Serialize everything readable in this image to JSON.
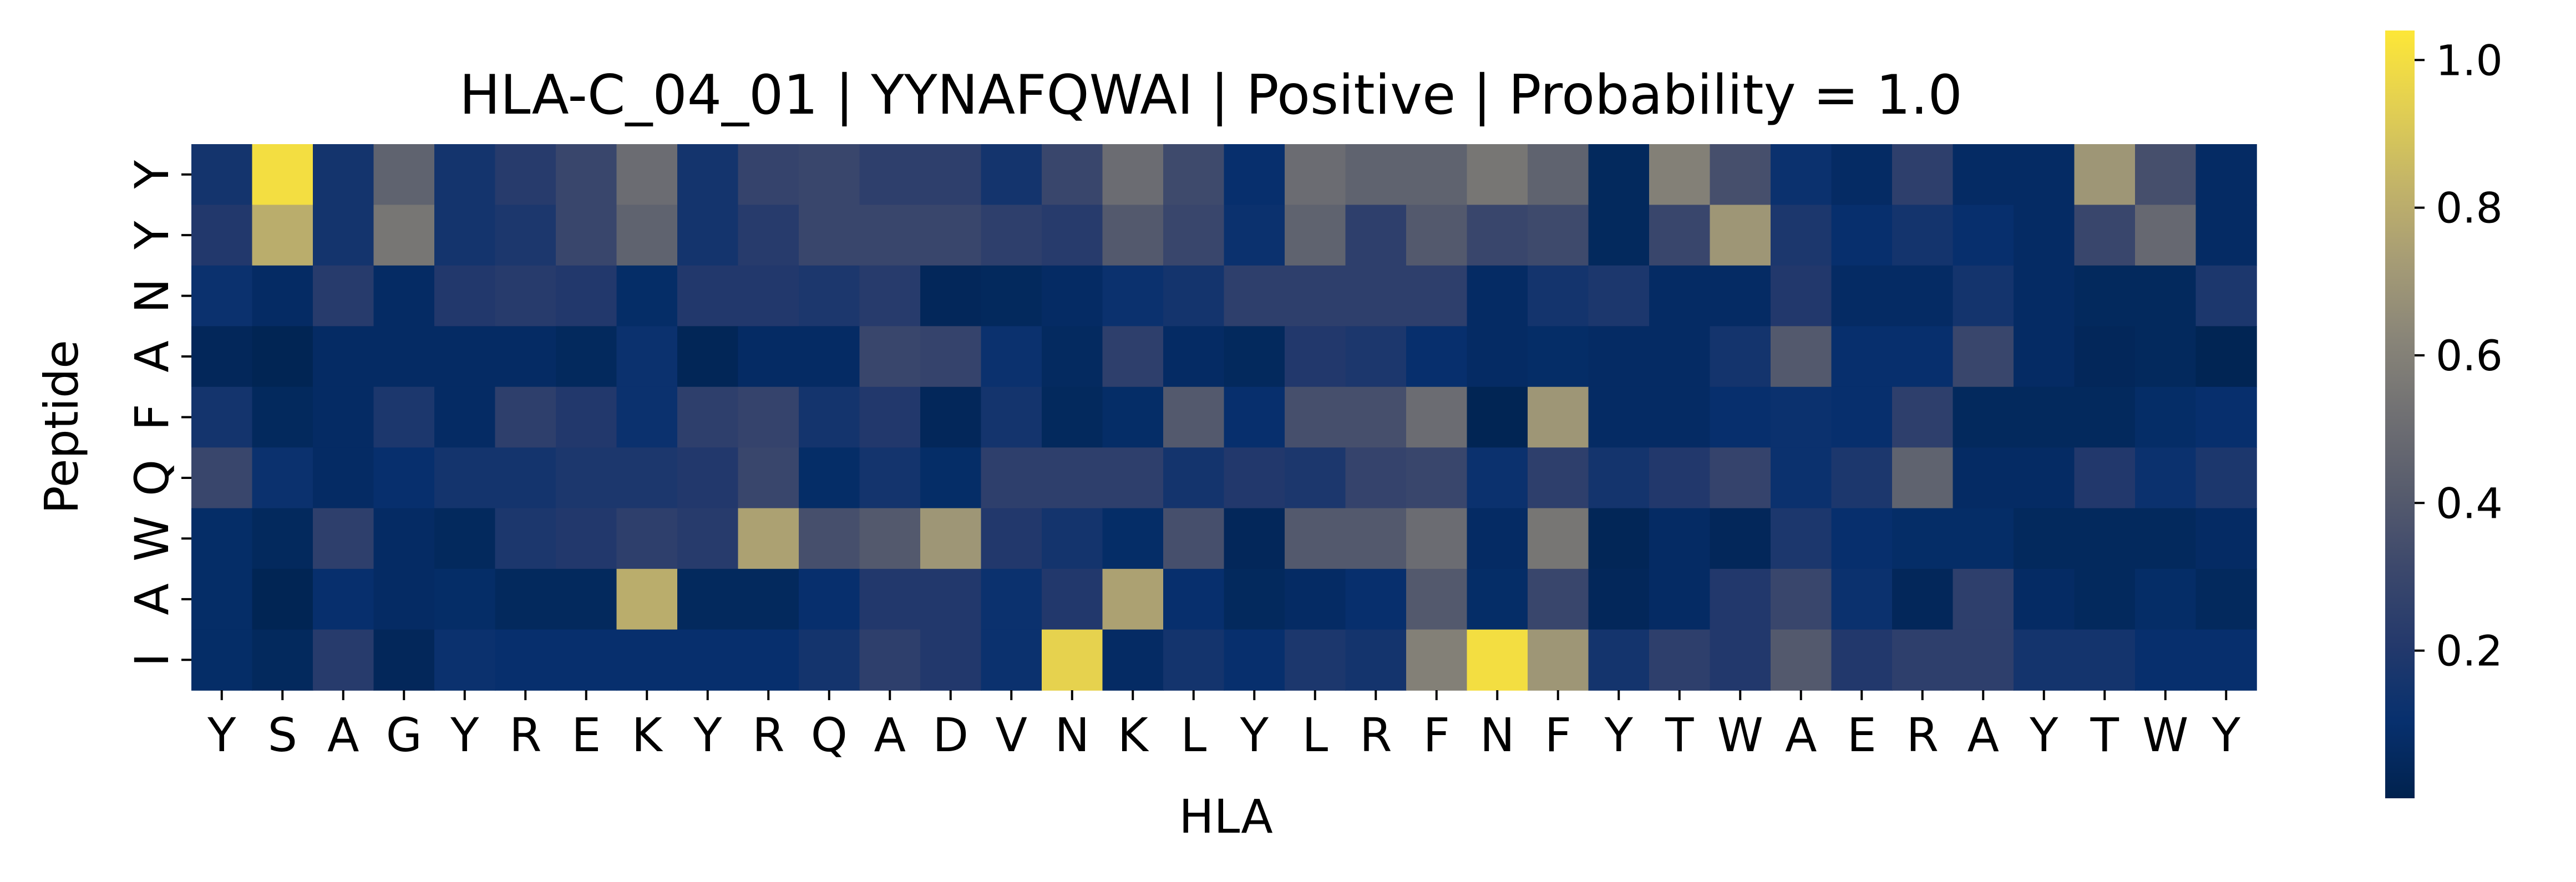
{
  "chart_data": {
    "type": "heatmap",
    "title": "HLA-C_04_01 | YYNAFQWAI | Positive | Probability = 1.0",
    "xlabel": "HLA",
    "ylabel": "Peptide",
    "x_categories": [
      "Y",
      "S",
      "A",
      "G",
      "Y",
      "R",
      "E",
      "K",
      "Y",
      "R",
      "Q",
      "A",
      "D",
      "V",
      "N",
      "K",
      "L",
      "Y",
      "L",
      "R",
      "F",
      "N",
      "F",
      "Y",
      "T",
      "W",
      "A",
      "E",
      "R",
      "A",
      "Y",
      "T",
      "W",
      "Y"
    ],
    "y_categories": [
      "Y",
      "Y",
      "N",
      "A",
      "F",
      "Q",
      "W",
      "A",
      "I"
    ],
    "values": [
      [
        0.15,
        1.0,
        0.15,
        0.45,
        0.15,
        0.22,
        0.3,
        0.5,
        0.15,
        0.28,
        0.3,
        0.25,
        0.25,
        0.15,
        0.3,
        0.5,
        0.32,
        0.1,
        0.5,
        0.45,
        0.45,
        0.55,
        0.45,
        0.05,
        0.6,
        0.35,
        0.12,
        0.07,
        0.25,
        0.07,
        0.07,
        0.7,
        0.35,
        0.07
      ],
      [
        0.2,
        0.8,
        0.15,
        0.55,
        0.15,
        0.18,
        0.3,
        0.45,
        0.15,
        0.22,
        0.3,
        0.3,
        0.3,
        0.25,
        0.22,
        0.4,
        0.3,
        0.12,
        0.45,
        0.25,
        0.4,
        0.3,
        0.32,
        0.05,
        0.3,
        0.7,
        0.18,
        0.1,
        0.15,
        0.1,
        0.07,
        0.3,
        0.48,
        0.07
      ],
      [
        0.12,
        0.07,
        0.22,
        0.07,
        0.2,
        0.22,
        0.2,
        0.08,
        0.2,
        0.2,
        0.18,
        0.22,
        0.04,
        0.05,
        0.07,
        0.12,
        0.15,
        0.25,
        0.25,
        0.25,
        0.25,
        0.07,
        0.15,
        0.18,
        0.07,
        0.07,
        0.2,
        0.07,
        0.07,
        0.15,
        0.07,
        0.05,
        0.05,
        0.18
      ],
      [
        0.04,
        0.02,
        0.07,
        0.07,
        0.07,
        0.07,
        0.05,
        0.12,
        0.03,
        0.07,
        0.07,
        0.3,
        0.28,
        0.12,
        0.06,
        0.25,
        0.07,
        0.05,
        0.2,
        0.18,
        0.1,
        0.07,
        0.08,
        0.07,
        0.07,
        0.15,
        0.4,
        0.1,
        0.1,
        0.3,
        0.07,
        0.04,
        0.05,
        0.02
      ],
      [
        0.15,
        0.05,
        0.07,
        0.18,
        0.07,
        0.25,
        0.2,
        0.12,
        0.25,
        0.28,
        0.15,
        0.2,
        0.04,
        0.15,
        0.05,
        0.08,
        0.4,
        0.1,
        0.35,
        0.35,
        0.5,
        0.02,
        0.7,
        0.07,
        0.07,
        0.1,
        0.12,
        0.1,
        0.25,
        0.05,
        0.05,
        0.05,
        0.08,
        0.1
      ],
      [
        0.3,
        0.12,
        0.07,
        0.1,
        0.15,
        0.15,
        0.18,
        0.18,
        0.2,
        0.3,
        0.08,
        0.15,
        0.08,
        0.25,
        0.25,
        0.25,
        0.15,
        0.2,
        0.18,
        0.28,
        0.3,
        0.12,
        0.25,
        0.15,
        0.2,
        0.28,
        0.12,
        0.18,
        0.45,
        0.07,
        0.07,
        0.2,
        0.12,
        0.18
      ],
      [
        0.08,
        0.05,
        0.25,
        0.07,
        0.05,
        0.18,
        0.2,
        0.25,
        0.22,
        0.75,
        0.35,
        0.4,
        0.7,
        0.2,
        0.15,
        0.08,
        0.35,
        0.04,
        0.4,
        0.4,
        0.5,
        0.07,
        0.55,
        0.03,
        0.07,
        0.04,
        0.18,
        0.1,
        0.08,
        0.08,
        0.05,
        0.05,
        0.05,
        0.07
      ],
      [
        0.08,
        0.02,
        0.1,
        0.07,
        0.08,
        0.05,
        0.05,
        0.8,
        0.05,
        0.05,
        0.1,
        0.2,
        0.2,
        0.12,
        0.2,
        0.75,
        0.1,
        0.05,
        0.07,
        0.1,
        0.4,
        0.08,
        0.3,
        0.04,
        0.07,
        0.2,
        0.3,
        0.12,
        0.04,
        0.25,
        0.07,
        0.05,
        0.08,
        0.05
      ],
      [
        0.08,
        0.05,
        0.22,
        0.04,
        0.12,
        0.1,
        0.1,
        0.1,
        0.1,
        0.1,
        0.15,
        0.25,
        0.2,
        0.12,
        0.95,
        0.07,
        0.15,
        0.1,
        0.18,
        0.15,
        0.6,
        1.0,
        0.7,
        0.15,
        0.25,
        0.2,
        0.4,
        0.2,
        0.25,
        0.25,
        0.15,
        0.15,
        0.1,
        0.1
      ]
    ],
    "colormap": "cividis",
    "colorbar": {
      "min": 0.0,
      "max": 1.04,
      "ticks": [
        0.2,
        0.4,
        0.6,
        0.8,
        1.0
      ],
      "tick_labels": [
        "0.2",
        "0.4",
        "0.6",
        "0.8",
        "1.0"
      ]
    }
  }
}
